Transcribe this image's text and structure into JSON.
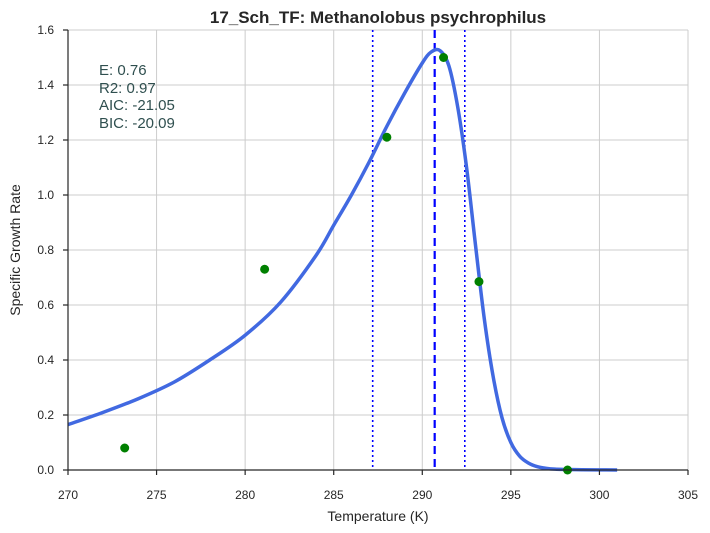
{
  "chart_data": {
    "type": "line",
    "title": "17_Sch_TF: Methanolobus psychrophilus",
    "xlabel": "Temperature (K)",
    "ylabel": "Specific Growth Rate",
    "xlim": [
      270,
      305
    ],
    "ylim": [
      0,
      1.6
    ],
    "xticks": [
      270,
      275,
      280,
      285,
      290,
      295,
      300,
      305
    ],
    "yticks": [
      0.0,
      0.2,
      0.4,
      0.6,
      0.8,
      1.0,
      1.2,
      1.4,
      1.6
    ],
    "xtick_labels": [
      "270",
      "275",
      "280",
      "285",
      "290",
      "295",
      "300",
      "305"
    ],
    "ytick_labels": [
      "0.0",
      "0.2",
      "0.4",
      "0.6",
      "0.8",
      "1.0",
      "1.2",
      "1.4",
      "1.6"
    ],
    "grid": true,
    "annotations": [
      "E:  0.76",
      "R2:  0.97",
      "AIC: -21.05",
      "BIC: -20.09"
    ],
    "series": [
      {
        "kind": "points",
        "color": "#008000",
        "x": [
          273.2,
          281.1,
          288.0,
          291.2,
          293.2,
          298.2
        ],
        "y": [
          0.08,
          0.73,
          1.21,
          1.5,
          0.685,
          0.0
        ]
      },
      {
        "kind": "fit-curve",
        "color": "#4169e1",
        "x": [
          270,
          272,
          274,
          276,
          278,
          280,
          282,
          284,
          285,
          286,
          287,
          288,
          289,
          290,
          290.5,
          291,
          291.5,
          292,
          292.5,
          293,
          293.5,
          294,
          294.5,
          295,
          295.5,
          296,
          296.5,
          297,
          297.5,
          298,
          299,
          300,
          301
        ],
        "y": [
          0.165,
          0.21,
          0.26,
          0.32,
          0.4,
          0.49,
          0.61,
          0.78,
          0.89,
          1.0,
          1.12,
          1.25,
          1.37,
          1.48,
          1.52,
          1.525,
          1.47,
          1.32,
          1.1,
          0.82,
          0.55,
          0.34,
          0.19,
          0.1,
          0.05,
          0.025,
          0.012,
          0.006,
          0.003,
          0.002,
          0.001,
          0.0005,
          0.0002
        ]
      }
    ],
    "vertical_lines": [
      {
        "x": 287.2,
        "style": "dotted",
        "color": "#0000ff"
      },
      {
        "x": 290.7,
        "style": "dashed",
        "color": "#0000ff"
      },
      {
        "x": 292.4,
        "style": "dotted",
        "color": "#0000ff"
      }
    ]
  }
}
